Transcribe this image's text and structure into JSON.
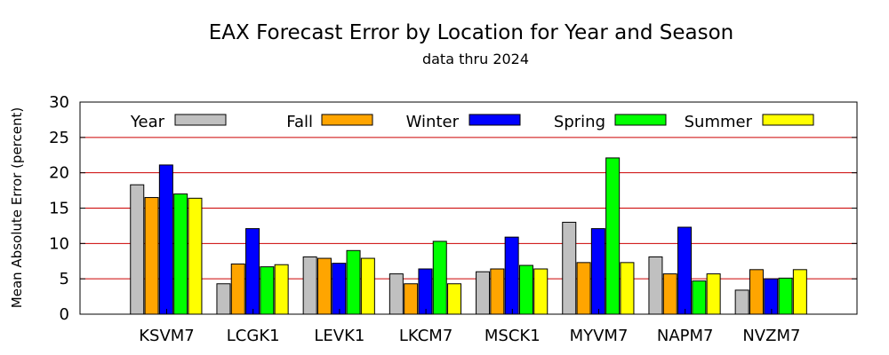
{
  "chart_data": {
    "type": "bar",
    "title": "EAX Forecast Error by Location for Year and Season",
    "subtitle": "data thru 2024",
    "xlabel": "",
    "ylabel": "Mean Absolute Error (percent)",
    "ylim": [
      0,
      30
    ],
    "yticks": [
      0,
      5,
      10,
      15,
      20,
      25,
      30
    ],
    "grid": "horizontal",
    "legend_position": "top",
    "categories": [
      "KSVM7",
      "LCGK1",
      "LEVK1",
      "LKCM7",
      "MSCK1",
      "MYVM7",
      "NAPM7",
      "NVZM7"
    ],
    "series": [
      {
        "name": "Year",
        "color": "#c0c0c0",
        "values": [
          18.3,
          4.3,
          8.1,
          5.7,
          6.0,
          13.0,
          8.1,
          3.4
        ]
      },
      {
        "name": "Fall",
        "color": "#ffa500",
        "values": [
          16.5,
          7.1,
          7.9,
          4.3,
          6.4,
          7.3,
          5.7,
          6.3
        ]
      },
      {
        "name": "Winter",
        "color": "#0000ff",
        "values": [
          21.1,
          12.1,
          7.2,
          6.4,
          10.9,
          12.1,
          12.3,
          5.0
        ]
      },
      {
        "name": "Spring",
        "color": "#00ff00",
        "values": [
          17.0,
          6.7,
          9.0,
          10.3,
          6.9,
          22.1,
          4.7,
          5.1
        ]
      },
      {
        "name": "Summer",
        "color": "#ffff00",
        "values": [
          16.4,
          7.0,
          7.9,
          4.3,
          6.4,
          7.3,
          5.7,
          6.3
        ]
      }
    ]
  }
}
